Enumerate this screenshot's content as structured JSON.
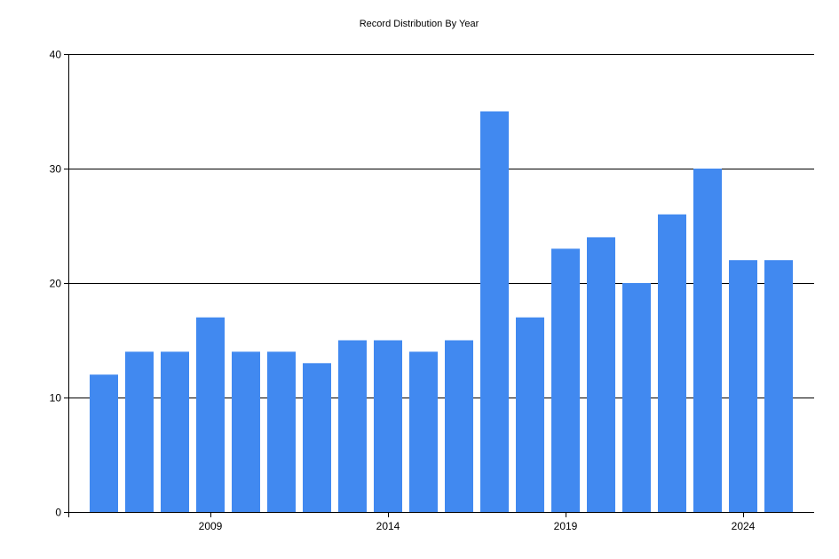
{
  "chart_data": {
    "type": "bar",
    "title": "Record Distribution By Year",
    "xlabel": "",
    "ylabel": "",
    "x": [
      2006,
      2007,
      2008,
      2009,
      2010,
      2011,
      2012,
      2013,
      2014,
      2015,
      2016,
      2017,
      2018,
      2019,
      2020,
      2021,
      2022,
      2023,
      2024,
      2025
    ],
    "values": [
      12,
      14,
      14,
      17,
      14,
      14,
      13,
      15,
      15,
      14,
      15,
      35,
      17,
      23,
      24,
      20,
      26,
      30,
      22,
      22
    ],
    "ylim": [
      0,
      40
    ],
    "yticks": [
      0,
      10,
      20,
      30,
      40
    ],
    "xticks": [
      "2009",
      "2014",
      "2019",
      "2024"
    ],
    "grid": "horizontal",
    "legend": "none",
    "colors": {
      "bar": "#4189f0",
      "grid": "#000000",
      "axis": "#000000"
    }
  }
}
